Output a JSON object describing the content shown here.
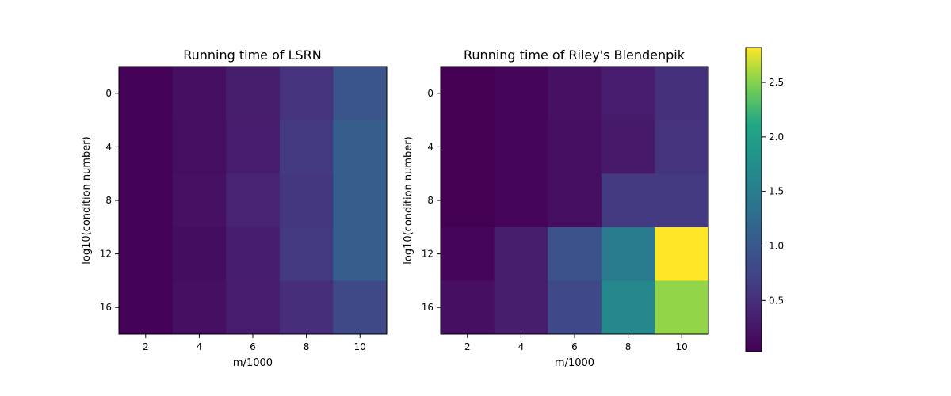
{
  "chart_data": [
    {
      "type": "heatmap",
      "title": "Running time of LSRN",
      "xlabel": "m/1000",
      "ylabel": "log10(condition number)",
      "x_ticks": [
        "2",
        "4",
        "6",
        "8",
        "10"
      ],
      "y_ticks": [
        "0",
        "4",
        "8",
        "12",
        "16"
      ],
      "values": [
        [
          0.05,
          0.18,
          0.32,
          0.55,
          0.95
        ],
        [
          0.05,
          0.16,
          0.3,
          0.62,
          1.08
        ],
        [
          0.05,
          0.2,
          0.38,
          0.58,
          1.08
        ],
        [
          0.05,
          0.15,
          0.33,
          0.62,
          1.08
        ],
        [
          0.05,
          0.18,
          0.3,
          0.5,
          0.8
        ]
      ]
    },
    {
      "type": "heatmap",
      "title": "Running time of Riley's Blendenpik",
      "xlabel": "m/1000",
      "ylabel": "log10(condition number)",
      "x_ticks": [
        "2",
        "4",
        "6",
        "8",
        "10"
      ],
      "y_ticks": [
        "0",
        "4",
        "8",
        "12",
        "16"
      ],
      "values": [
        [
          0.03,
          0.08,
          0.2,
          0.3,
          0.52
        ],
        [
          0.03,
          0.08,
          0.18,
          0.28,
          0.55
        ],
        [
          0.03,
          0.08,
          0.16,
          0.62,
          0.62
        ],
        [
          0.08,
          0.32,
          0.92,
          1.45,
          2.82
        ],
        [
          0.18,
          0.32,
          0.78,
          1.65,
          2.55
        ]
      ]
    }
  ],
  "colorbar": {
    "colormap": "viridis",
    "vmin": 0.03,
    "vmax": 2.82,
    "ticks": [
      {
        "value": 0.5,
        "label": "0.5"
      },
      {
        "value": 1.0,
        "label": "1.0"
      },
      {
        "value": 1.5,
        "label": "1.5"
      },
      {
        "value": 2.0,
        "label": "2.0"
      },
      {
        "value": 2.5,
        "label": "2.5"
      }
    ]
  }
}
